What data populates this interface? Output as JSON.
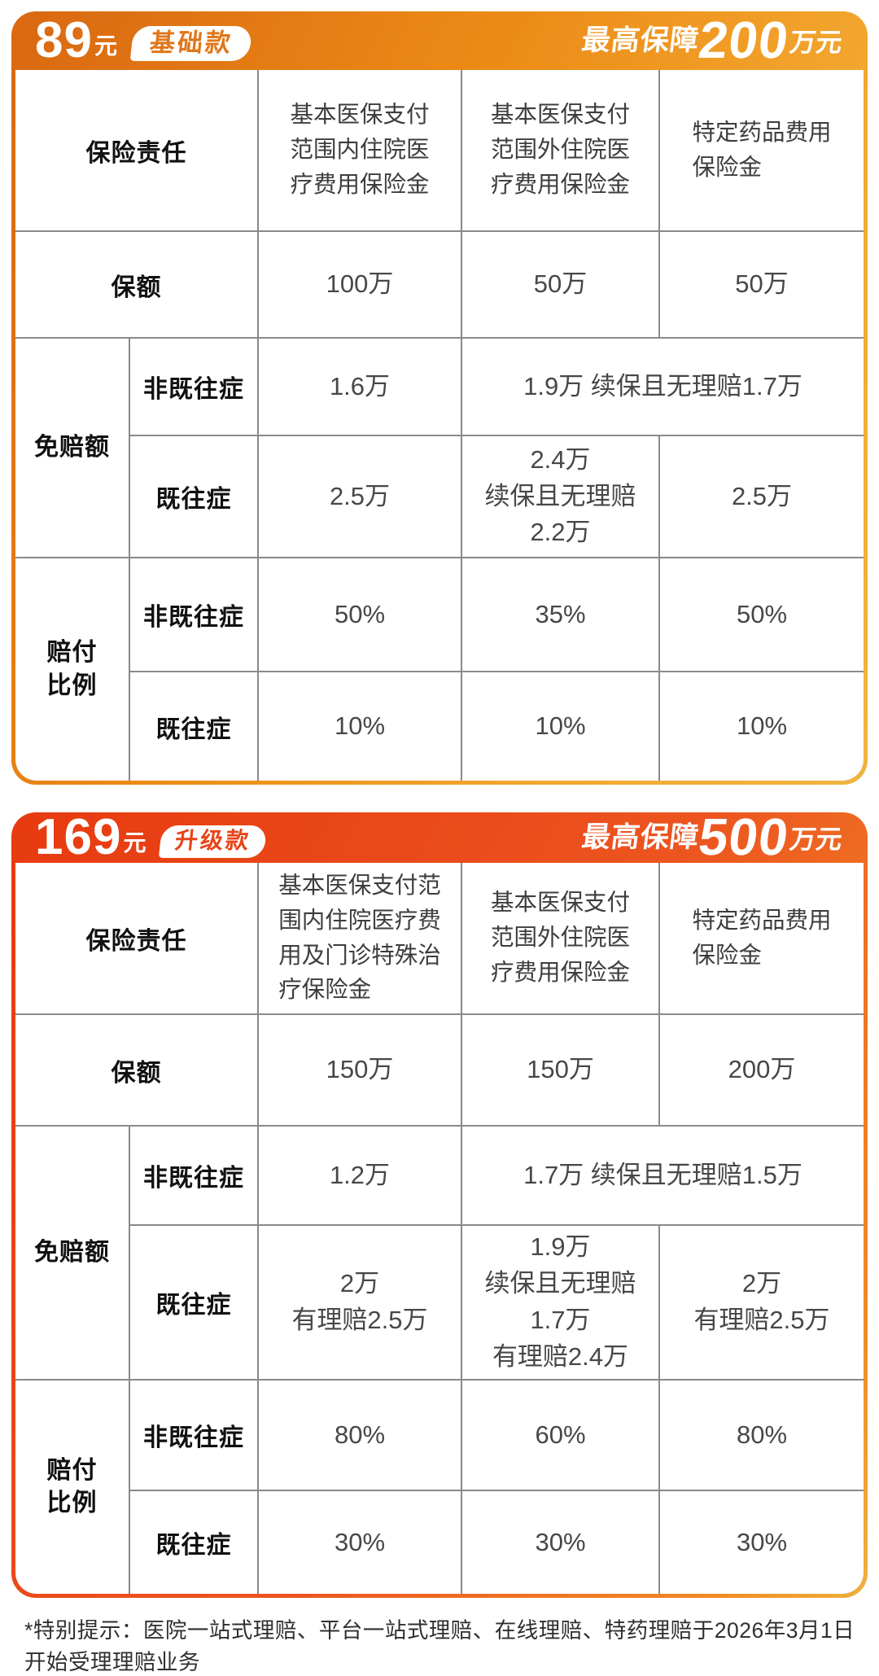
{
  "plans": [
    {
      "price": "89",
      "price_unit": "元",
      "tier_badge": "基础款",
      "coverage_prefix": "最高保障",
      "coverage_amount": "200",
      "coverage_suffix": "万元",
      "table": {
        "corner_label": "保险责任",
        "columns": [
          "基本医保支付\n范围内住院医\n疗费用保险金",
          "基本医保支付\n范围外住院医\n疗费用保险金",
          "特定药品费用\n保险金"
        ],
        "sum_insured_label": "保额",
        "sum_insured_values": [
          "100万",
          "50万",
          "50万"
        ],
        "deductible_label": "免赔额",
        "non_preexisting_label": "非既往症",
        "preexisting_label": "既往症",
        "deductible_non_preexisting_col1": "1.6万",
        "deductible_non_preexisting_merged": "1.9万  续保且无理赔1.7万",
        "deductible_preexisting_values": [
          "2.5万",
          "2.4万\n续保且无理赔2.2万",
          "2.5万"
        ],
        "ratio_label": "赔付\n比例",
        "ratio_non_preexisting_values": [
          "50%",
          "35%",
          "50%"
        ],
        "ratio_preexisting_values": [
          "10%",
          "10%",
          "10%"
        ]
      }
    },
    {
      "price": "169",
      "price_unit": "元",
      "tier_badge": "升级款",
      "coverage_prefix": "最高保障",
      "coverage_amount": "500",
      "coverage_suffix": "万元",
      "table": {
        "corner_label": "保险责任",
        "columns": [
          "基本医保支付范\n围内住院医疗费\n用及门诊特殊治\n疗保险金",
          "基本医保支付\n范围外住院医\n疗费用保险金",
          "特定药品费用\n保险金"
        ],
        "sum_insured_label": "保额",
        "sum_insured_values": [
          "150万",
          "150万",
          "200万"
        ],
        "deductible_label": "免赔额",
        "non_preexisting_label": "非既往症",
        "preexisting_label": "既往症",
        "deductible_non_preexisting_col1": "1.2万",
        "deductible_non_preexisting_merged": "1.7万  续保且无理赔1.5万",
        "deductible_preexisting_values": [
          "2万\n有理赔2.5万",
          "1.9万\n续保且无理赔1.7万\n有理赔2.4万",
          "2万\n有理赔2.5万"
        ],
        "ratio_label": "赔付\n比例",
        "ratio_non_preexisting_values": [
          "80%",
          "60%",
          "80%"
        ],
        "ratio_preexisting_values": [
          "30%",
          "30%",
          "30%"
        ]
      }
    }
  ],
  "footnote": "*特别提示：医院一站式理赔、平台一站式理赔、在线理赔、特药理赔于2026年3月1日开始受理理赔业务"
}
